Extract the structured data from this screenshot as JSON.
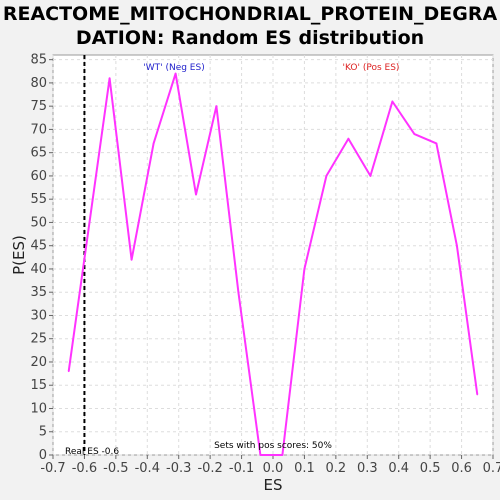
{
  "title_line1": "REACTOME_MITOCHONDRIAL_PROTEIN_DEGRA",
  "title_line2": "DATION: Random ES distribution",
  "colors": {
    "line": "#ff33ff",
    "wt": "#2222cc",
    "ko": "#dd2222",
    "marker": "#000000",
    "grid": "#dddddd"
  },
  "chart_data": {
    "type": "line",
    "title": "REACTOME_MITOCHONDRIAL_PROTEIN_DEGRADATION: Random ES distribution",
    "xlabel": "ES",
    "ylabel": "P(ES)",
    "xlim": [
      -0.7,
      0.7
    ],
    "ylim": [
      0,
      86
    ],
    "xticks": [
      "-0.7",
      "-0.6",
      "-0.5",
      "-0.4",
      "-0.3",
      "-0.2",
      "-0.1",
      "0.0",
      "0.1",
      "0.2",
      "0.3",
      "0.4",
      "0.5",
      "0.6",
      "0.7"
    ],
    "yticks": [
      "0",
      "5",
      "10",
      "15",
      "20",
      "25",
      "30",
      "35",
      "40",
      "45",
      "50",
      "55",
      "60",
      "65",
      "70",
      "75",
      "80",
      "85"
    ],
    "grid": true,
    "x": [
      -0.65,
      -0.52,
      -0.45,
      -0.38,
      -0.31,
      -0.245,
      -0.18,
      -0.11,
      -0.04,
      0.03,
      0.1,
      0.17,
      0.24,
      0.31,
      0.38,
      0.45,
      0.52,
      0.585,
      0.65
    ],
    "y": [
      18,
      81,
      42,
      67,
      82,
      56,
      75,
      35,
      0,
      0,
      40,
      60,
      68,
      60,
      76,
      69,
      67,
      45,
      13
    ],
    "real_es": -0.6,
    "annotations": {
      "neg": "'WT' (Neg ES)",
      "pos": "'KO' (Pos ES)",
      "real_es": "Real ES -0.6",
      "pos_scores": "Sets with pos scores: 50%"
    }
  }
}
